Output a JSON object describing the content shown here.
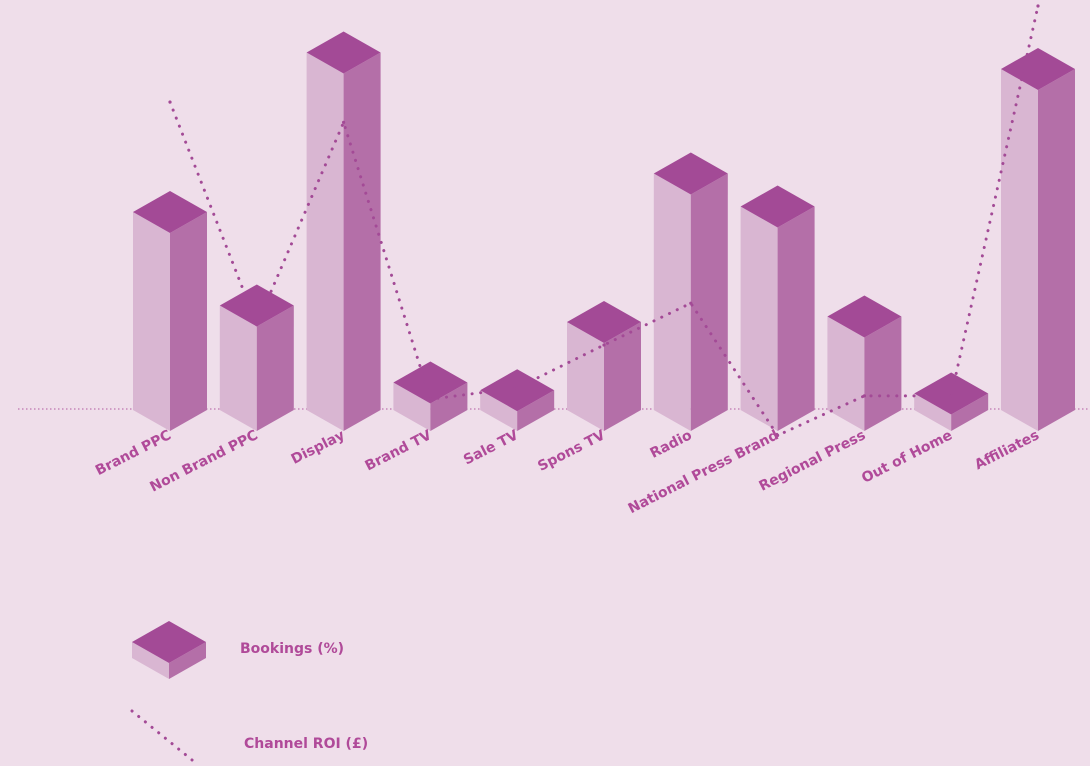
{
  "chart_data": {
    "type": "bar",
    "categories": [
      "Brand PPC",
      "Non Brand PPC",
      "Display",
      "Brand TV",
      "Sale TV",
      "Spons TV",
      "Radio",
      "National Press Brand",
      "Regional Press",
      "Out of Home",
      "Affiliates"
    ],
    "series": [
      {
        "name": "Bookings (%)",
        "style": "bar-3d",
        "values": [
          18,
          9.5,
          32.5,
          2.5,
          1.8,
          8,
          21.5,
          18.5,
          8.5,
          1.5,
          31
        ]
      },
      {
        "name": "Channel ROI (£)",
        "style": "dotted-line",
        "values": [
          31.5,
          11.8,
          29.7,
          5.2,
          6.2,
          10,
          13.7,
          2,
          5.5,
          5.5,
          40
        ]
      }
    ],
    "ylim": [
      0,
      40
    ],
    "grid": false,
    "legend_position": "bottom-left",
    "colors": {
      "bar_top": "#a34a96",
      "bar_front": "#d9b6d2",
      "bar_side": "#b46fa8",
      "line": "#a34a96",
      "baseline": "#b05aa0",
      "label": "#b04a99",
      "background": "#efdeea"
    }
  }
}
